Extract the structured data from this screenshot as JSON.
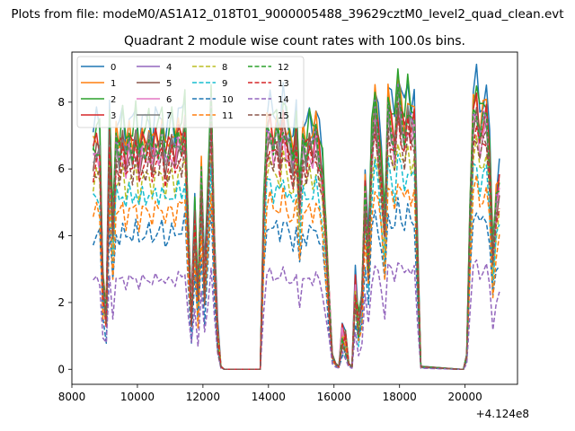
{
  "chart_data": {
    "type": "line",
    "suptitle": "Plots from file: modeM0/AS1A12_018T01_9000005488_39629cztM0_level2_quad_clean.evt",
    "title": "Quadrant 2 module wise count rates with 100.0s bins.",
    "xlabel": "",
    "ylabel": "",
    "offset_text": "+4.124e8",
    "xlim": [
      8000,
      21600
    ],
    "ylim": [
      -0.45,
      9.5
    ],
    "x_ticks": [
      8000,
      10000,
      12000,
      14000,
      16000,
      18000,
      20000
    ],
    "y_ticks": [
      0,
      2,
      4,
      6,
      8
    ],
    "legend_loc": "upper-left",
    "legend_columns": 4,
    "series_profile_note": "relative shape shared by all modules; each series = gain x profile",
    "x": [
      8650,
      8750,
      8850,
      8950,
      9050,
      9150,
      9250,
      9350,
      9450,
      9550,
      9650,
      9750,
      9850,
      9950,
      10050,
      10150,
      10250,
      10350,
      10450,
      10550,
      10650,
      10750,
      10850,
      10950,
      11050,
      11150,
      11250,
      11350,
      11450,
      11550,
      11650,
      11750,
      11850,
      11950,
      12050,
      12150,
      12250,
      12350,
      12450,
      12550,
      12650,
      12750,
      13750,
      13850,
      13950,
      14050,
      14150,
      14250,
      14350,
      14450,
      14550,
      14650,
      14750,
      14850,
      14950,
      15050,
      15150,
      15250,
      15350,
      15450,
      15550,
      15650,
      15750,
      15850,
      15950,
      16050,
      16150,
      16250,
      16350,
      16450,
      16550,
      16650,
      16750,
      16850,
      16950,
      17050,
      17150,
      17250,
      17350,
      17450,
      17550,
      17650,
      17750,
      17850,
      17950,
      18050,
      18150,
      18250,
      18350,
      18450,
      18550,
      18650,
      19850,
      19950,
      20050,
      20150,
      20250,
      20350,
      20450,
      20550,
      20650,
      20750,
      20850,
      20950,
      21050
    ],
    "profile": [
      0.78,
      0.82,
      0.8,
      0.3,
      0.2,
      0.85,
      0.5,
      0.82,
      0.78,
      0.85,
      0.76,
      0.83,
      0.79,
      0.86,
      0.75,
      0.82,
      0.8,
      0.84,
      0.77,
      0.83,
      0.81,
      0.86,
      0.76,
      0.8,
      0.84,
      0.78,
      0.85,
      0.82,
      0.9,
      0.5,
      0.2,
      0.55,
      0.25,
      0.7,
      0.3,
      0.6,
      0.95,
      0.45,
      0.12,
      0.01,
      0.0,
      0.0,
      0.0,
      0.55,
      0.85,
      0.88,
      0.82,
      0.86,
      0.8,
      0.9,
      0.84,
      0.8,
      0.75,
      0.85,
      0.6,
      0.82,
      0.78,
      0.84,
      0.8,
      0.86,
      0.78,
      0.7,
      0.5,
      0.25,
      0.05,
      0.02,
      0.01,
      0.12,
      0.1,
      0.02,
      0.01,
      0.3,
      0.15,
      0.25,
      0.65,
      0.4,
      0.8,
      0.95,
      0.85,
      0.7,
      0.5,
      0.95,
      0.88,
      0.82,
      1.0,
      0.92,
      0.85,
      0.95,
      0.88,
      0.9,
      0.4,
      0.01,
      0.0,
      0.0,
      0.05,
      0.55,
      0.92,
      0.96,
      0.85,
      0.9,
      0.92,
      0.75,
      0.4,
      0.6,
      0.66
    ],
    "series": [
      {
        "name": "0",
        "color": "#1f77b4",
        "style": "solid",
        "gain": 9.1
      },
      {
        "name": "1",
        "color": "#ff7f0e",
        "style": "solid",
        "gain": 8.6
      },
      {
        "name": "2",
        "color": "#2ca02c",
        "style": "solid",
        "gain": 8.9
      },
      {
        "name": "3",
        "color": "#d62728",
        "style": "solid",
        "gain": 8.3
      },
      {
        "name": "4",
        "color": "#9467bd",
        "style": "solid",
        "gain": 8.2
      },
      {
        "name": "5",
        "color": "#8c564b",
        "style": "solid",
        "gain": 8.0
      },
      {
        "name": "6",
        "color": "#e377c2",
        "style": "solid",
        "gain": 7.8
      },
      {
        "name": "7",
        "color": "#7f7f7f",
        "style": "solid",
        "gain": 8.1
      },
      {
        "name": "8",
        "color": "#bcbd22",
        "style": "dashed",
        "gain": 7.0
      },
      {
        "name": "9",
        "color": "#17becf",
        "style": "dashed",
        "gain": 6.4
      },
      {
        "name": "10",
        "color": "#1f77b4",
        "style": "dashed",
        "gain": 5.0
      },
      {
        "name": "11",
        "color": "#ff7f0e",
        "style": "dashed",
        "gain": 5.8
      },
      {
        "name": "12",
        "color": "#2ca02c",
        "style": "dashed",
        "gain": 8.2
      },
      {
        "name": "13",
        "color": "#d62728",
        "style": "dashed",
        "gain": 7.6
      },
      {
        "name": "14",
        "color": "#9467bd",
        "style": "dashed",
        "gain": 3.3
      },
      {
        "name": "15",
        "color": "#8c564b",
        "style": "dashed",
        "gain": 7.4
      }
    ]
  }
}
